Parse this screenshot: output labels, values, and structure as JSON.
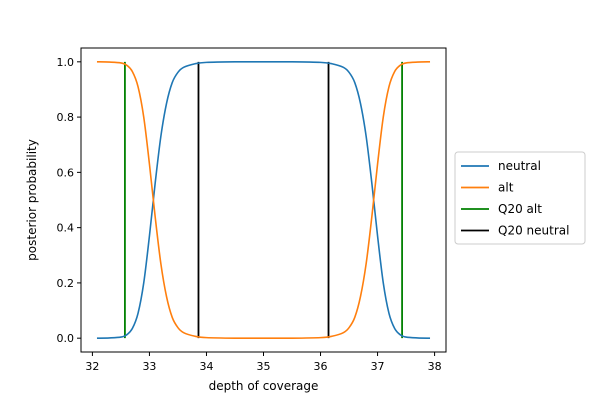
{
  "chart_data": {
    "type": "line",
    "title": "",
    "xlabel": "depth of coverage",
    "ylabel": "posterior probability",
    "xlim": [
      31.8,
      38.2
    ],
    "ylim": [
      -0.05,
      1.05
    ],
    "xticks": [
      32,
      33,
      34,
      35,
      36,
      37,
      38
    ],
    "yticks": [
      0.0,
      0.2,
      0.4,
      0.6,
      0.8,
      1.0
    ],
    "xtick_labels": [
      "32",
      "33",
      "34",
      "35",
      "36",
      "37",
      "38"
    ],
    "ytick_labels": [
      "0.0",
      "0.2",
      "0.4",
      "0.6",
      "0.8",
      "1.0"
    ],
    "grid": false,
    "legend_position": "right-outside",
    "series": [
      {
        "name": "neutral",
        "color": "#1f77b4",
        "x": [
          32.08,
          32.3,
          32.5,
          32.6,
          32.7,
          32.8,
          32.9,
          33.0,
          33.1,
          33.2,
          33.3,
          33.4,
          33.5,
          33.6,
          33.8,
          34.0,
          34.5,
          35.0,
          35.5,
          36.0,
          36.2,
          36.4,
          36.5,
          36.6,
          36.7,
          36.8,
          36.9,
          37.0,
          37.1,
          37.2,
          37.3,
          37.4,
          37.5,
          37.7,
          37.92
        ],
        "y": [
          0.0,
          0.001,
          0.004,
          0.012,
          0.035,
          0.09,
          0.2,
          0.37,
          0.56,
          0.73,
          0.85,
          0.925,
          0.962,
          0.98,
          0.993,
          0.998,
          1.0,
          1.0,
          1.0,
          0.998,
          0.993,
          0.98,
          0.962,
          0.925,
          0.85,
          0.73,
          0.56,
          0.37,
          0.2,
          0.09,
          0.035,
          0.012,
          0.004,
          0.001,
          0.0
        ]
      },
      {
        "name": "alt",
        "color": "#ff7f0e",
        "x": [
          32.08,
          32.3,
          32.5,
          32.6,
          32.7,
          32.8,
          32.9,
          33.0,
          33.1,
          33.2,
          33.3,
          33.4,
          33.5,
          33.6,
          33.8,
          34.0,
          34.5,
          35.0,
          35.5,
          36.0,
          36.2,
          36.4,
          36.5,
          36.6,
          36.7,
          36.8,
          36.9,
          37.0,
          37.1,
          37.2,
          37.3,
          37.4,
          37.5,
          37.7,
          37.92
        ],
        "y": [
          1.0,
          0.999,
          0.996,
          0.988,
          0.965,
          0.91,
          0.8,
          0.63,
          0.44,
          0.27,
          0.15,
          0.075,
          0.038,
          0.02,
          0.007,
          0.002,
          0.0,
          0.0,
          0.0,
          0.002,
          0.007,
          0.02,
          0.038,
          0.075,
          0.15,
          0.27,
          0.44,
          0.63,
          0.8,
          0.91,
          0.965,
          0.988,
          0.996,
          0.999,
          1.0
        ]
      }
    ],
    "vlines": [
      {
        "name": "Q20 alt",
        "color": "#008000",
        "x": [
          32.57,
          37.43
        ],
        "y_range": [
          0.0,
          1.0
        ]
      },
      {
        "name": "Q20 neutral",
        "color": "#000000",
        "x": [
          33.86,
          36.14
        ],
        "y_range": [
          0.0,
          1.0
        ]
      }
    ],
    "legend": [
      "neutral",
      "alt",
      "Q20 alt",
      "Q20 neutral"
    ]
  }
}
